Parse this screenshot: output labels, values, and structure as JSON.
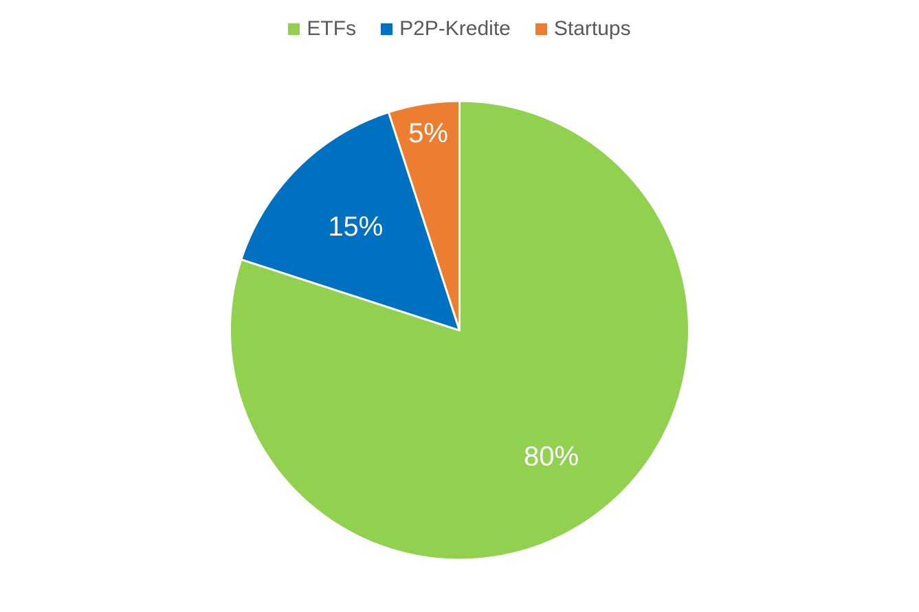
{
  "chart_data": {
    "type": "pie",
    "title": "",
    "categories": [
      "ETFs",
      "P2P-Kredite",
      "Startups"
    ],
    "values": [
      80,
      15,
      5
    ],
    "data_labels": [
      "80%",
      "15%",
      "5%"
    ],
    "colors": [
      "#92d050",
      "#0070c0",
      "#ed7d31"
    ],
    "legend_position": "top",
    "start_angle": "12 o'clock",
    "direction": "clockwise"
  }
}
